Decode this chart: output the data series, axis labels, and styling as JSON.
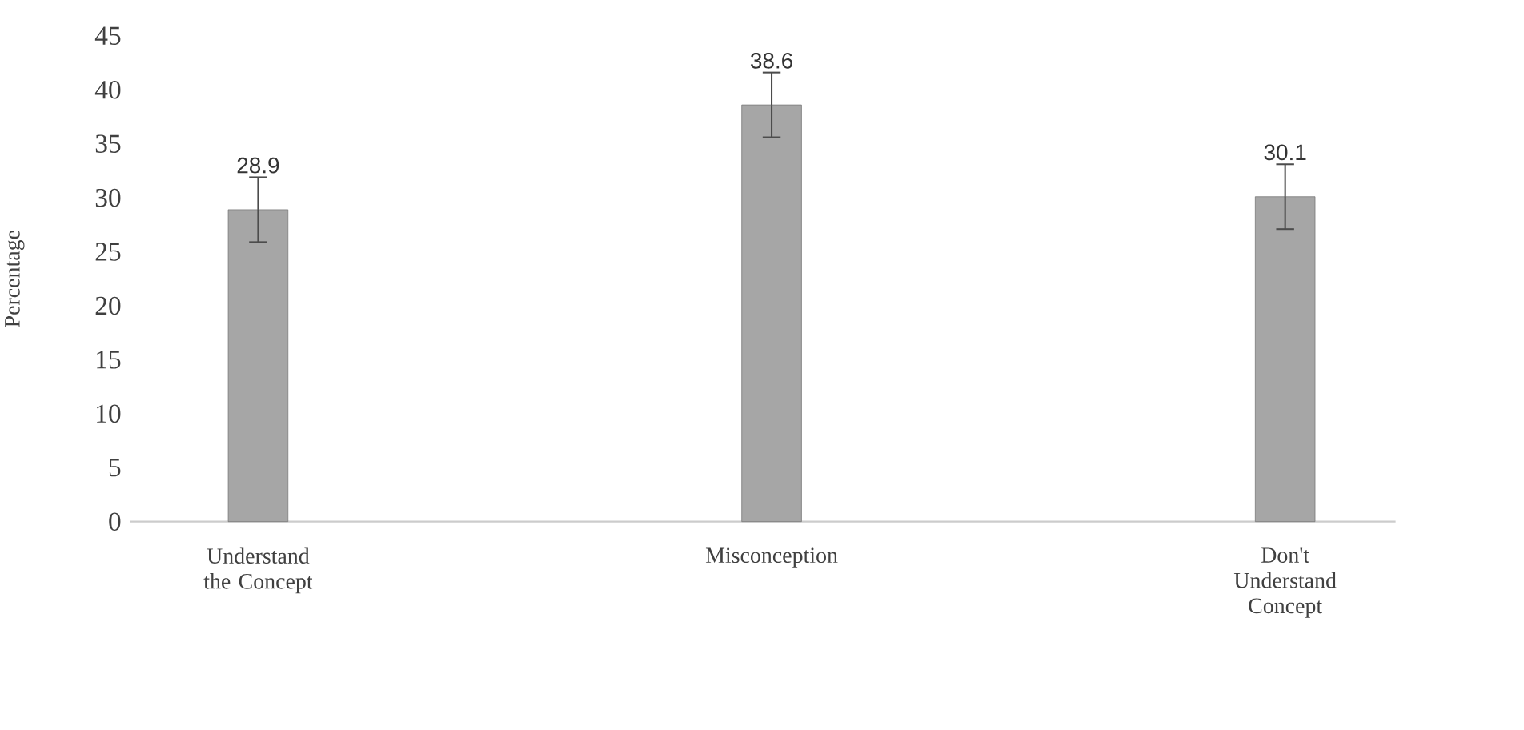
{
  "chart_data": {
    "type": "bar",
    "ylabel": "Percentage",
    "categories": [
      "Understand the Concept",
      "Misconception",
      "Don't Understand Concept"
    ],
    "values": [
      28.9,
      38.6,
      30.1
    ],
    "errors": [
      3,
      3,
      3
    ],
    "color": "#a6a6a6",
    "data_labels": true,
    "ylim": [
      0,
      45
    ],
    "yticks": [
      0,
      5,
      10,
      15,
      20,
      25,
      30,
      35,
      40,
      45
    ]
  }
}
